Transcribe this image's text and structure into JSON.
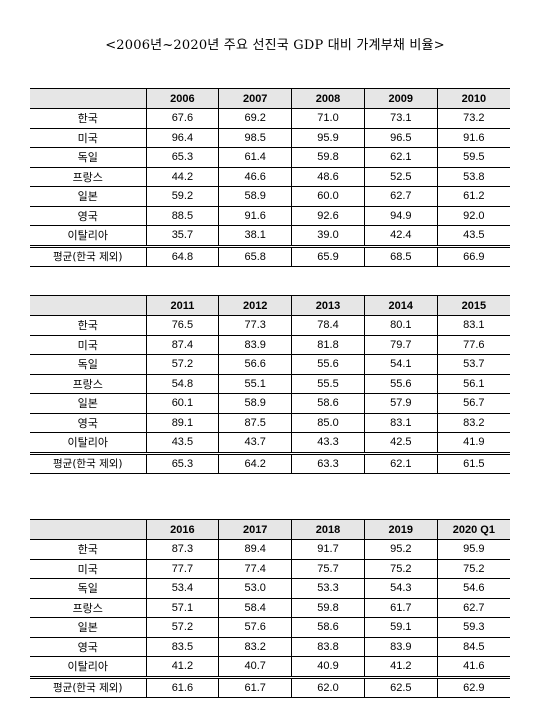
{
  "title": "<2006년~2020년 주요 선진국 GDP 대비 가계부채 비율>",
  "tables": [
    {
      "years": [
        "2006",
        "2007",
        "2008",
        "2009",
        "2010"
      ],
      "rows": [
        {
          "label": "한국",
          "values": [
            "67.6",
            "69.2",
            "71.0",
            "73.1",
            "73.2"
          ]
        },
        {
          "label": "미국",
          "values": [
            "96.4",
            "98.5",
            "95.9",
            "96.5",
            "91.6"
          ]
        },
        {
          "label": "독일",
          "values": [
            "65.3",
            "61.4",
            "59.8",
            "62.1",
            "59.5"
          ]
        },
        {
          "label": "프랑스",
          "values": [
            "44.2",
            "46.6",
            "48.6",
            "52.5",
            "53.8"
          ]
        },
        {
          "label": "일본",
          "values": [
            "59.2",
            "58.9",
            "60.0",
            "62.7",
            "61.2"
          ]
        },
        {
          "label": "영국",
          "values": [
            "88.5",
            "91.6",
            "92.6",
            "94.9",
            "92.0"
          ]
        },
        {
          "label": "이탈리아",
          "values": [
            "35.7",
            "38.1",
            "39.0",
            "42.4",
            "43.5"
          ]
        }
      ],
      "average": {
        "label": "평균(한국 제외)",
        "values": [
          "64.8",
          "65.8",
          "65.9",
          "68.5",
          "66.9"
        ]
      }
    },
    {
      "years": [
        "2011",
        "2012",
        "2013",
        "2014",
        "2015"
      ],
      "rows": [
        {
          "label": "한국",
          "values": [
            "76.5",
            "77.3",
            "78.4",
            "80.1",
            "83.1"
          ]
        },
        {
          "label": "미국",
          "values": [
            "87.4",
            "83.9",
            "81.8",
            "79.7",
            "77.6"
          ]
        },
        {
          "label": "독일",
          "values": [
            "57.2",
            "56.6",
            "55.6",
            "54.1",
            "53.7"
          ]
        },
        {
          "label": "프랑스",
          "values": [
            "54.8",
            "55.1",
            "55.5",
            "55.6",
            "56.1"
          ]
        },
        {
          "label": "일본",
          "values": [
            "60.1",
            "58.9",
            "58.6",
            "57.9",
            "56.7"
          ]
        },
        {
          "label": "영국",
          "values": [
            "89.1",
            "87.5",
            "85.0",
            "83.1",
            "83.2"
          ]
        },
        {
          "label": "이탈리아",
          "values": [
            "43.5",
            "43.7",
            "43.3",
            "42.5",
            "41.9"
          ]
        }
      ],
      "average": {
        "label": "평균(한국 제외)",
        "values": [
          "65.3",
          "64.2",
          "63.3",
          "62.1",
          "61.5"
        ]
      }
    },
    {
      "years": [
        "2016",
        "2017",
        "2018",
        "2019",
        "2020 Q1"
      ],
      "rows": [
        {
          "label": "한국",
          "values": [
            "87.3",
            "89.4",
            "91.7",
            "95.2",
            "95.9"
          ]
        },
        {
          "label": "미국",
          "values": [
            "77.7",
            "77.4",
            "75.7",
            "75.2",
            "75.2"
          ]
        },
        {
          "label": "독일",
          "values": [
            "53.4",
            "53.0",
            "53.3",
            "54.3",
            "54.6"
          ]
        },
        {
          "label": "프랑스",
          "values": [
            "57.1",
            "58.4",
            "59.8",
            "61.7",
            "62.7"
          ]
        },
        {
          "label": "일본",
          "values": [
            "57.2",
            "57.6",
            "58.6",
            "59.1",
            "59.3"
          ]
        },
        {
          "label": "영국",
          "values": [
            "83.5",
            "83.2",
            "83.8",
            "83.9",
            "84.5"
          ]
        },
        {
          "label": "이탈리아",
          "values": [
            "41.2",
            "40.7",
            "40.9",
            "41.2",
            "41.6"
          ]
        }
      ],
      "average": {
        "label": "평균(한국 제외)",
        "values": [
          "61.6",
          "61.7",
          "62.0",
          "62.5",
          "62.9"
        ]
      }
    }
  ]
}
